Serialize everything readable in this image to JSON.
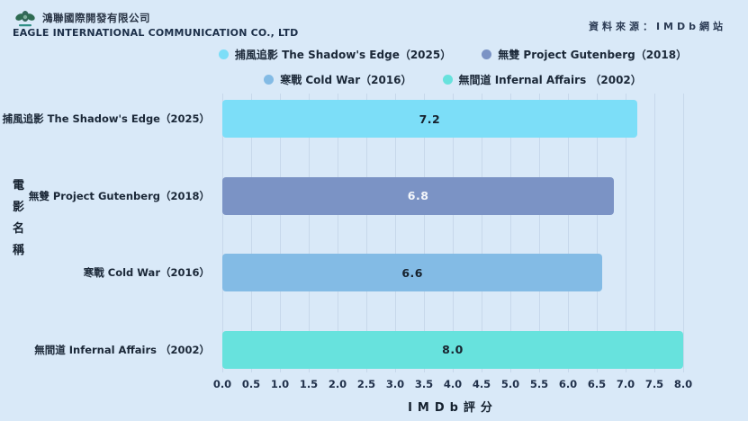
{
  "header": {
    "company_zh": "鴻聯國際開發有限公司",
    "company_en": "EAGLE INTERNATIONAL COMMUNICATION CO., LTD",
    "source": "資料來源：IMDb網站",
    "logo_icon": "eagle-company-logo",
    "logo_colors": {
      "leaf": "#33665a",
      "accent": "#2e8f86"
    }
  },
  "legend": {
    "rows": [
      [
        {
          "label": "捕風追影 The Shadow's Edge（2025）",
          "color": "#7cdef8"
        },
        {
          "label": "無雙 Project Gutenberg（2018）",
          "color": "#7b93c5"
        }
      ],
      [
        {
          "label": "寒戰 Cold War（2016）",
          "color": "#83bbe5"
        },
        {
          "label": "無間道 Infernal Affairs （2002）",
          "color": "#67e2dd"
        }
      ]
    ]
  },
  "chart_data": {
    "type": "bar",
    "orientation": "horizontal",
    "title": "",
    "categories": [
      "捕風追影 The Shadow's Edge（2025）",
      "無雙 Project Gutenberg（2018）",
      "寒戰 Cold War（2016）",
      "無間道 Infernal Affairs （2002）"
    ],
    "values": [
      7.2,
      6.8,
      6.6,
      8.0
    ],
    "colors": [
      "#7cdef8",
      "#7b93c5",
      "#83bbe5",
      "#67e2dd"
    ],
    "value_label_colors": [
      "#17222e",
      "#f4f7fb",
      "#17222e",
      "#17222e"
    ],
    "xlabel": "IMDb評分",
    "ylabel": "電影名稱",
    "xlim": [
      0,
      8
    ],
    "xticks": [
      "0.0",
      "0.5",
      "1.0",
      "1.5",
      "2.0",
      "2.5",
      "3.0",
      "3.5",
      "4.0",
      "4.5",
      "5.0",
      "5.5",
      "6.0",
      "6.5",
      "7.0",
      "7.5",
      "8.0"
    ],
    "grid": true,
    "gridline_color": "#c7d8eb",
    "background_color": "#d9e9f8",
    "legend_position": "top"
  }
}
